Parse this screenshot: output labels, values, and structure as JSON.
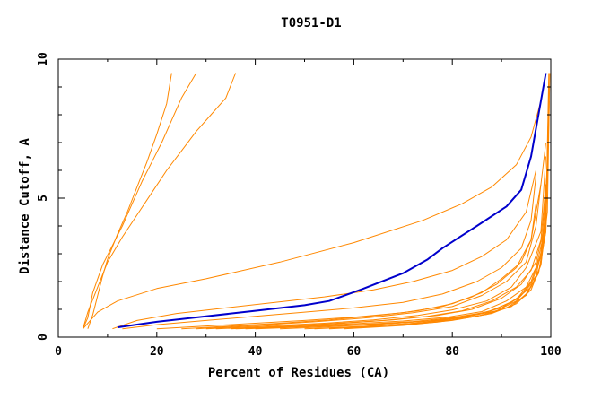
{
  "chart_data": {
    "type": "line",
    "title": "T0951-D1",
    "xlabel": "Percent of Residues (CA)",
    "ylabel": "Distance Cutoff, A",
    "xlim": [
      0,
      100
    ],
    "ylim": [
      0,
      10
    ],
    "x_ticks": [
      "0",
      "20",
      "40",
      "60",
      "80",
      "100"
    ],
    "y_ticks": [
      "0",
      "5",
      "10"
    ],
    "grid": false,
    "colors": {
      "highlight": "#0000cc",
      "other": "#ff8800"
    },
    "series": [
      {
        "highlight": true,
        "x": [
          12,
          20,
          30,
          40,
          50,
          55,
          62,
          70,
          75,
          78,
          85,
          91,
          94,
          96,
          98,
          99
        ],
        "y": [
          0.35,
          0.55,
          0.75,
          0.95,
          1.15,
          1.3,
          1.75,
          2.3,
          2.8,
          3.2,
          4.0,
          4.7,
          5.3,
          6.5,
          8.5,
          9.5
        ]
      },
      {
        "x": [
          6,
          7,
          8,
          9,
          10,
          12,
          14,
          16,
          18,
          20,
          22,
          23
        ],
        "y": [
          0.3,
          0.8,
          1.5,
          2.2,
          2.8,
          3.7,
          4.5,
          5.4,
          6.3,
          7.3,
          8.4,
          9.5
        ]
      },
      {
        "x": [
          5,
          6,
          7,
          9,
          11,
          13,
          15,
          17,
          19,
          21,
          23,
          25,
          28
        ],
        "y": [
          0.3,
          0.7,
          1.6,
          2.6,
          3.3,
          4.0,
          4.8,
          5.6,
          6.3,
          7.0,
          7.8,
          8.6,
          9.5
        ]
      },
      {
        "x": [
          5,
          6,
          8,
          10,
          13,
          16,
          19,
          22,
          25,
          28,
          31,
          34,
          36
        ],
        "y": [
          0.3,
          0.9,
          1.8,
          2.7,
          3.6,
          4.4,
          5.2,
          6.0,
          6.7,
          7.4,
          8.0,
          8.6,
          9.5
        ]
      },
      {
        "x": [
          5,
          8,
          12,
          20,
          30,
          45,
          60,
          74,
          82,
          88,
          93,
          96,
          98
        ],
        "y": [
          0.3,
          0.9,
          1.3,
          1.75,
          2.1,
          2.7,
          3.4,
          4.2,
          4.8,
          5.4,
          6.2,
          7.2,
          8.5
        ]
      },
      {
        "x": [
          11,
          16,
          24,
          34,
          44,
          54,
          64,
          72,
          80,
          86,
          91,
          95,
          97
        ],
        "y": [
          0.3,
          0.6,
          0.85,
          1.05,
          1.25,
          1.45,
          1.7,
          2.0,
          2.4,
          2.9,
          3.5,
          4.5,
          6.0
        ]
      },
      {
        "x": [
          13,
          20,
          30,
          40,
          50,
          60,
          70,
          78,
          85,
          90,
          94,
          96,
          97
        ],
        "y": [
          0.3,
          0.45,
          0.6,
          0.75,
          0.9,
          1.05,
          1.25,
          1.55,
          2.0,
          2.5,
          3.2,
          4.2,
          5.8
        ]
      },
      {
        "x": [
          20,
          30,
          40,
          50,
          60,
          70,
          78,
          84,
          89,
          93,
          96,
          98
        ],
        "y": [
          0.3,
          0.4,
          0.5,
          0.6,
          0.72,
          0.88,
          1.1,
          1.45,
          1.9,
          2.5,
          3.5,
          5.5
        ]
      },
      {
        "x": [
          25,
          35,
          45,
          55,
          65,
          73,
          80,
          86,
          90,
          94,
          96,
          97
        ],
        "y": [
          0.3,
          0.4,
          0.5,
          0.62,
          0.78,
          0.95,
          1.2,
          1.6,
          2.1,
          2.7,
          3.5,
          4.8
        ]
      },
      {
        "x": [
          28,
          40,
          52,
          63,
          72,
          80,
          86,
          91,
          95,
          97,
          99
        ],
        "y": [
          0.3,
          0.42,
          0.55,
          0.7,
          0.88,
          1.1,
          1.5,
          2.0,
          2.7,
          4.0,
          7.0
        ]
      },
      {
        "x": [
          30,
          42,
          54,
          64,
          73,
          80,
          87,
          92,
          95,
          98,
          99
        ],
        "y": [
          0.3,
          0.4,
          0.5,
          0.62,
          0.78,
          0.98,
          1.3,
          1.8,
          2.5,
          3.8,
          6.5
        ]
      },
      {
        "x": [
          32,
          44,
          55,
          66,
          75,
          82,
          88,
          93,
          96,
          98,
          99
        ],
        "y": [
          0.3,
          0.38,
          0.48,
          0.6,
          0.75,
          0.95,
          1.3,
          1.8,
          2.4,
          3.5,
          5.5
        ]
      },
      {
        "x": [
          35,
          47,
          58,
          68,
          77,
          84,
          90,
          94,
          97,
          99,
          99.5
        ],
        "y": [
          0.3,
          0.4,
          0.5,
          0.62,
          0.78,
          1.0,
          1.4,
          1.9,
          2.7,
          4.2,
          7.5
        ]
      },
      {
        "x": [
          36,
          48,
          60,
          70,
          79,
          86,
          91,
          95,
          97,
          99,
          99.6
        ],
        "y": [
          0.3,
          0.38,
          0.48,
          0.58,
          0.72,
          0.92,
          1.3,
          1.8,
          2.5,
          4.0,
          9.5
        ]
      },
      {
        "x": [
          38,
          50,
          62,
          72,
          80,
          87,
          92,
          96,
          98,
          99,
          99.5
        ],
        "y": [
          0.3,
          0.38,
          0.46,
          0.56,
          0.7,
          0.9,
          1.25,
          1.8,
          2.6,
          4.5,
          8.0
        ]
      },
      {
        "x": [
          40,
          52,
          64,
          74,
          82,
          88,
          93,
          96,
          98,
          99.3
        ],
        "y": [
          0.3,
          0.38,
          0.46,
          0.56,
          0.72,
          0.95,
          1.35,
          2.0,
          3.0,
          6.0
        ]
      },
      {
        "x": [
          45,
          56,
          67,
          77,
          84,
          90,
          94,
          97,
          98.5,
          99.5
        ],
        "y": [
          0.3,
          0.38,
          0.48,
          0.6,
          0.78,
          1.05,
          1.5,
          2.2,
          3.5,
          7.0
        ]
      },
      {
        "x": [
          50,
          61,
          71,
          80,
          87,
          92,
          95,
          97.5,
          99,
          99.6
        ],
        "y": [
          0.3,
          0.38,
          0.48,
          0.62,
          0.82,
          1.1,
          1.55,
          2.3,
          3.8,
          9.0
        ]
      },
      {
        "x": [
          52,
          64,
          74,
          82,
          89,
          93,
          96,
          98,
          99.2
        ],
        "y": [
          0.3,
          0.4,
          0.52,
          0.7,
          0.95,
          1.3,
          1.9,
          2.9,
          5.0
        ]
      },
      {
        "x": [
          55,
          67,
          77,
          85,
          91,
          95,
          97.5,
          99,
          99.7
        ],
        "y": [
          0.3,
          0.4,
          0.54,
          0.75,
          1.05,
          1.5,
          2.3,
          3.8,
          8.5
        ]
      },
      {
        "x": [
          58,
          70,
          80,
          88,
          93,
          96,
          98,
          99.3,
          99.8
        ],
        "y": [
          0.3,
          0.42,
          0.6,
          0.85,
          1.2,
          1.7,
          2.6,
          4.5,
          9.5
        ]
      }
    ]
  }
}
